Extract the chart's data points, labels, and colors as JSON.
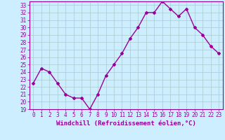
{
  "x": [
    0,
    1,
    2,
    3,
    4,
    5,
    6,
    7,
    8,
    9,
    10,
    11,
    12,
    13,
    14,
    15,
    16,
    17,
    18,
    19,
    20,
    21,
    22,
    23
  ],
  "y": [
    22.5,
    24.5,
    24.0,
    22.5,
    21.0,
    20.5,
    20.5,
    19.0,
    21.0,
    23.5,
    25.0,
    26.5,
    28.5,
    30.0,
    32.0,
    32.0,
    33.5,
    32.5,
    31.5,
    32.5,
    30.0,
    29.0,
    27.5,
    26.5
  ],
  "line_color": "#990099",
  "marker": "D",
  "markersize": 2,
  "linewidth": 1.0,
  "xlabel": "Windchill (Refroidissement éolien,°C)",
  "xlabel_fontsize": 6.5,
  "xlim": [
    -0.5,
    23.5
  ],
  "ylim": [
    19,
    33.5
  ],
  "yticks": [
    19,
    20,
    21,
    22,
    23,
    24,
    25,
    26,
    27,
    28,
    29,
    30,
    31,
    32,
    33
  ],
  "xticks": [
    0,
    1,
    2,
    3,
    4,
    5,
    6,
    7,
    8,
    9,
    10,
    11,
    12,
    13,
    14,
    15,
    16,
    17,
    18,
    19,
    20,
    21,
    22,
    23
  ],
  "bg_color": "#cceeff",
  "grid_color": "#aacccc",
  "tick_label_color": "#990099",
  "xlabel_color": "#990099",
  "axis_color": "#990099",
  "tick_fontsize": 5.5
}
